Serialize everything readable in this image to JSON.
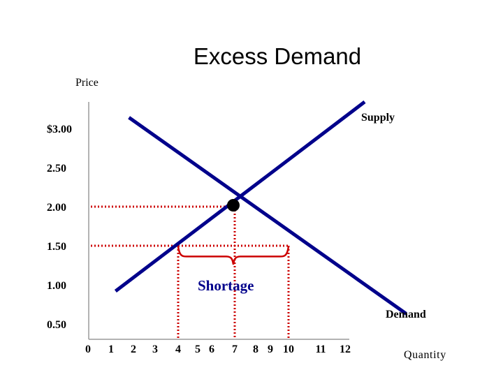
{
  "chart_data": {
    "type": "line",
    "title": "Excess Demand",
    "ylabel": "Price",
    "xlabel": "Quantity",
    "x_ticks": [
      "0",
      "1",
      "2",
      "3",
      "4",
      "5",
      "6",
      "7",
      "8",
      "9",
      "10",
      "11",
      "12"
    ],
    "y_ticks": [
      {
        "value": 3.0,
        "label": "$3.00"
      },
      {
        "value": 2.5,
        "label": "2.50"
      },
      {
        "value": 2.0,
        "label": "2.00"
      },
      {
        "value": 1.5,
        "label": "1.50"
      },
      {
        "value": 1.0,
        "label": "1.00"
      },
      {
        "value": 0.5,
        "label": "0.50"
      }
    ],
    "series": [
      {
        "name": "Supply",
        "points": [
          [
            1.2,
            0.92
          ],
          [
            12.8,
            3.34
          ]
        ]
      },
      {
        "name": "Demand",
        "points": [
          [
            1.8,
            3.14
          ],
          [
            14.5,
            0.63
          ]
        ]
      }
    ],
    "equilibrium": {
      "x": 7,
      "y": 2.0
    },
    "guide_lines": [
      {
        "from": [
          0,
          2.0
        ],
        "to": [
          7,
          2.0
        ]
      },
      {
        "from": [
          7,
          2.0
        ],
        "to": [
          7,
          0
        ]
      },
      {
        "from": [
          0,
          1.5
        ],
        "to": [
          10,
          1.5
        ]
      },
      {
        "from": [
          4,
          1.5
        ],
        "to": [
          4,
          0
        ]
      },
      {
        "from": [
          10,
          1.5
        ],
        "to": [
          10,
          0
        ]
      }
    ],
    "shortage": {
      "from_x": 4,
      "to_x": 10,
      "price": 1.5,
      "label": "Shortage"
    },
    "colors": {
      "curves": "#00008b",
      "guides": "#cc0000",
      "point": "#000000",
      "brace": "#cc0000"
    }
  }
}
